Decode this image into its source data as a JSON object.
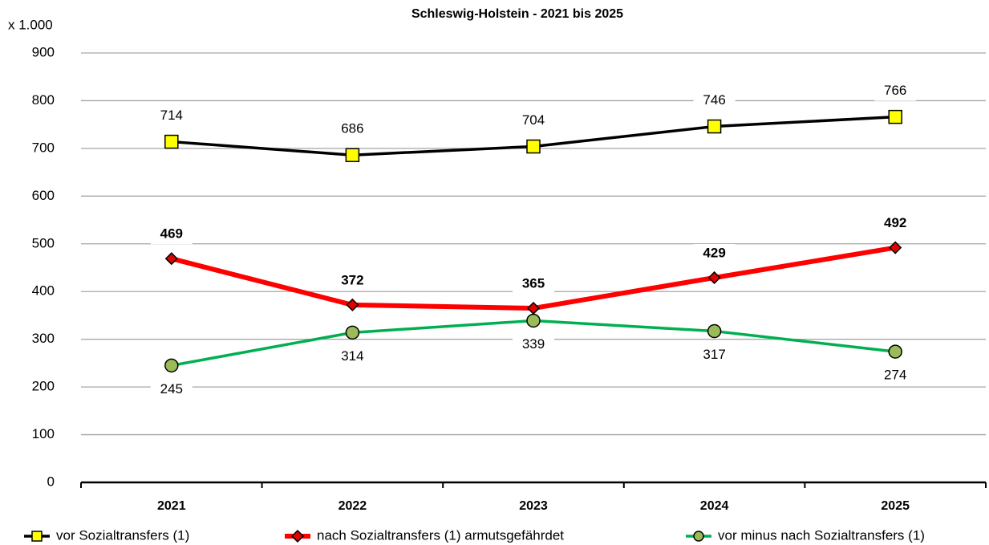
{
  "chart_data": {
    "type": "line",
    "title": "Schleswig-Holstein - 2021 bis 2025",
    "ylabel": "x 1.000",
    "categories": [
      "2021",
      "2022",
      "2023",
      "2024",
      "2025"
    ],
    "series": [
      {
        "name": "vor Sozialtransfers (1)",
        "color": "#000000",
        "marker": "square",
        "marker_color": "#ffff00",
        "values": [
          714,
          686,
          704,
          746,
          766
        ]
      },
      {
        "name": "nach Sozialtransfers (1) armutsgefährdet",
        "color": "#ff0000",
        "marker": "diamond",
        "marker_color": "#e00000",
        "values": [
          469,
          372,
          365,
          429,
          492
        ]
      },
      {
        "name": "vor minus nach Sozialtransfers (1)",
        "color": "#00b050",
        "marker": "circle",
        "marker_color": "#9bbb59",
        "values": [
          245,
          314,
          339,
          317,
          274
        ]
      }
    ],
    "ylim": [
      0,
      900
    ],
    "yticks": [
      0,
      100,
      200,
      300,
      400,
      500,
      600,
      700,
      800,
      900
    ],
    "grid": true
  }
}
